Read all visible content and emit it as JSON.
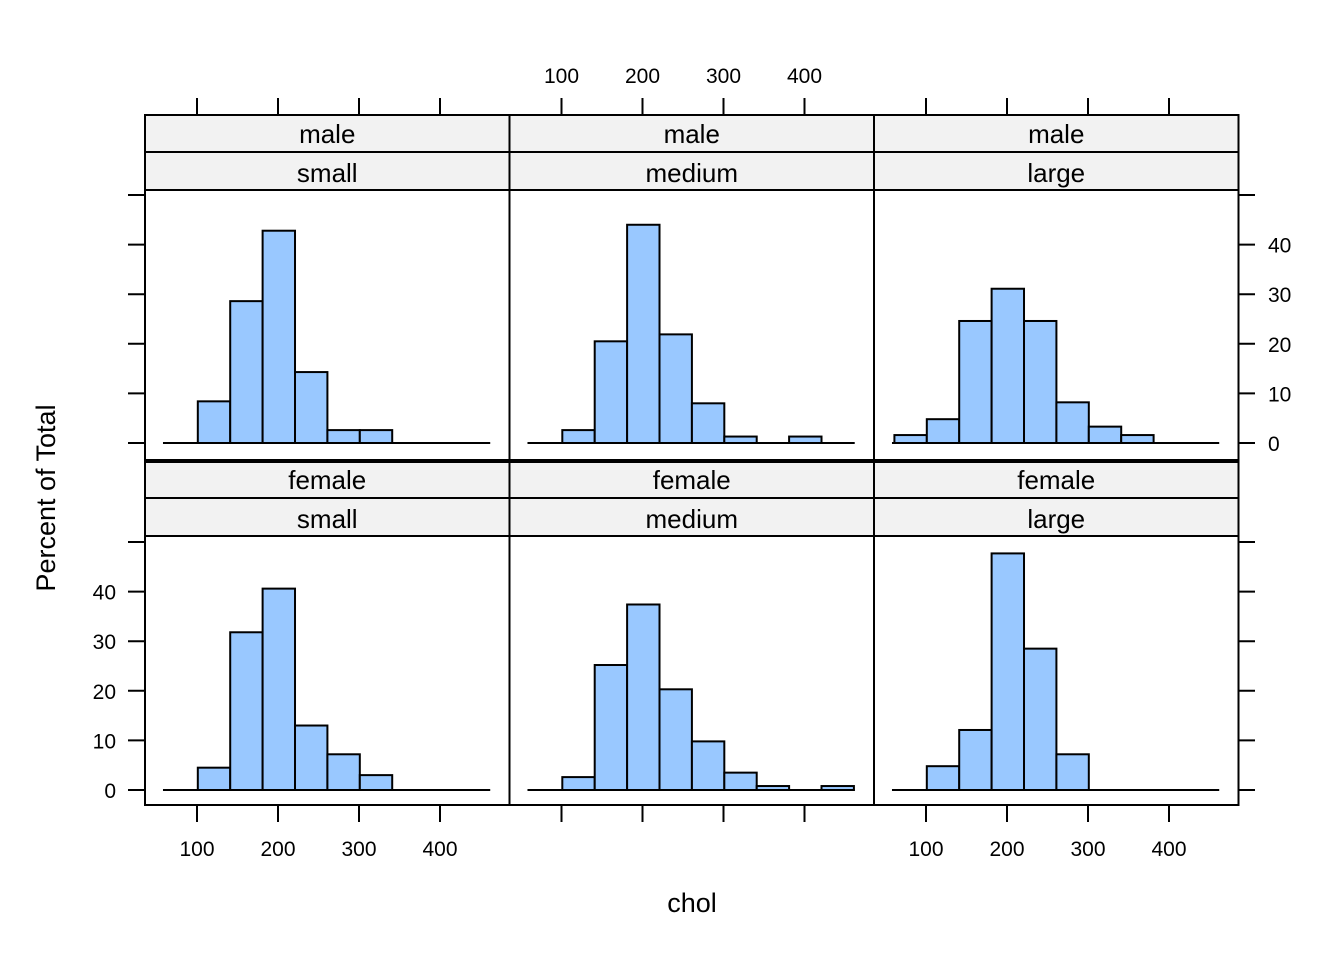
{
  "chart_data": {
    "type": "bar",
    "subtype": "histogram-trellis",
    "xlabel": "chol",
    "ylabel": "Percent of Total",
    "xlim": [
      50,
      470
    ],
    "ylim": [
      -2.5,
      50
    ],
    "xticks": [
      100,
      200,
      300,
      400
    ],
    "yticks": [
      0,
      10,
      20,
      30,
      40
    ],
    "tick_labels_x": [
      "100",
      "200",
      "300",
      "400"
    ],
    "tick_labels_y": [
      "0",
      "10",
      "20",
      "30",
      "40"
    ],
    "bin_start": 61,
    "bin_width": 40,
    "baseline_range": [
      58,
      462
    ],
    "colors": {
      "bar_fill": "#99c8ff",
      "bar_stroke": "#000000",
      "strip_fill": "#f2f2f2"
    },
    "grid": false,
    "panels": [
      {
        "row": 0,
        "col": 0,
        "strips": [
          "male",
          "small"
        ],
        "bins": [
          101,
          141,
          181,
          221,
          261,
          301
        ],
        "values": [
          8.4,
          28.6,
          42.8,
          14.3,
          2.6,
          2.6
        ]
      },
      {
        "row": 0,
        "col": 1,
        "strips": [
          "male",
          "medium"
        ],
        "bins": [
          101,
          141,
          181,
          221,
          261,
          301,
          341,
          381
        ],
        "values": [
          2.6,
          20.5,
          44.0,
          21.9,
          8.0,
          1.3,
          0,
          1.3
        ]
      },
      {
        "row": 0,
        "col": 2,
        "strips": [
          "male",
          "large"
        ],
        "bins": [
          61,
          101,
          141,
          181,
          221,
          261,
          301,
          341
        ],
        "values": [
          1.6,
          4.8,
          24.6,
          31.1,
          24.6,
          8.2,
          3.3,
          1.6
        ]
      },
      {
        "row": 1,
        "col": 0,
        "strips": [
          "female",
          "small"
        ],
        "bins": [
          101,
          141,
          181,
          221,
          261,
          301
        ],
        "values": [
          4.5,
          31.8,
          40.6,
          13.0,
          7.2,
          3.0
        ]
      },
      {
        "row": 1,
        "col": 1,
        "strips": [
          "female",
          "medium"
        ],
        "bins": [
          101,
          141,
          181,
          221,
          261,
          301,
          341,
          381,
          421
        ],
        "values": [
          2.6,
          25.2,
          37.4,
          20.3,
          9.8,
          3.5,
          0.8,
          0,
          0.8
        ]
      },
      {
        "row": 1,
        "col": 2,
        "strips": [
          "female",
          "large"
        ],
        "bins": [
          101,
          141,
          181,
          221,
          261
        ],
        "values": [
          4.8,
          12.1,
          47.7,
          28.5,
          7.2
        ]
      }
    ]
  }
}
